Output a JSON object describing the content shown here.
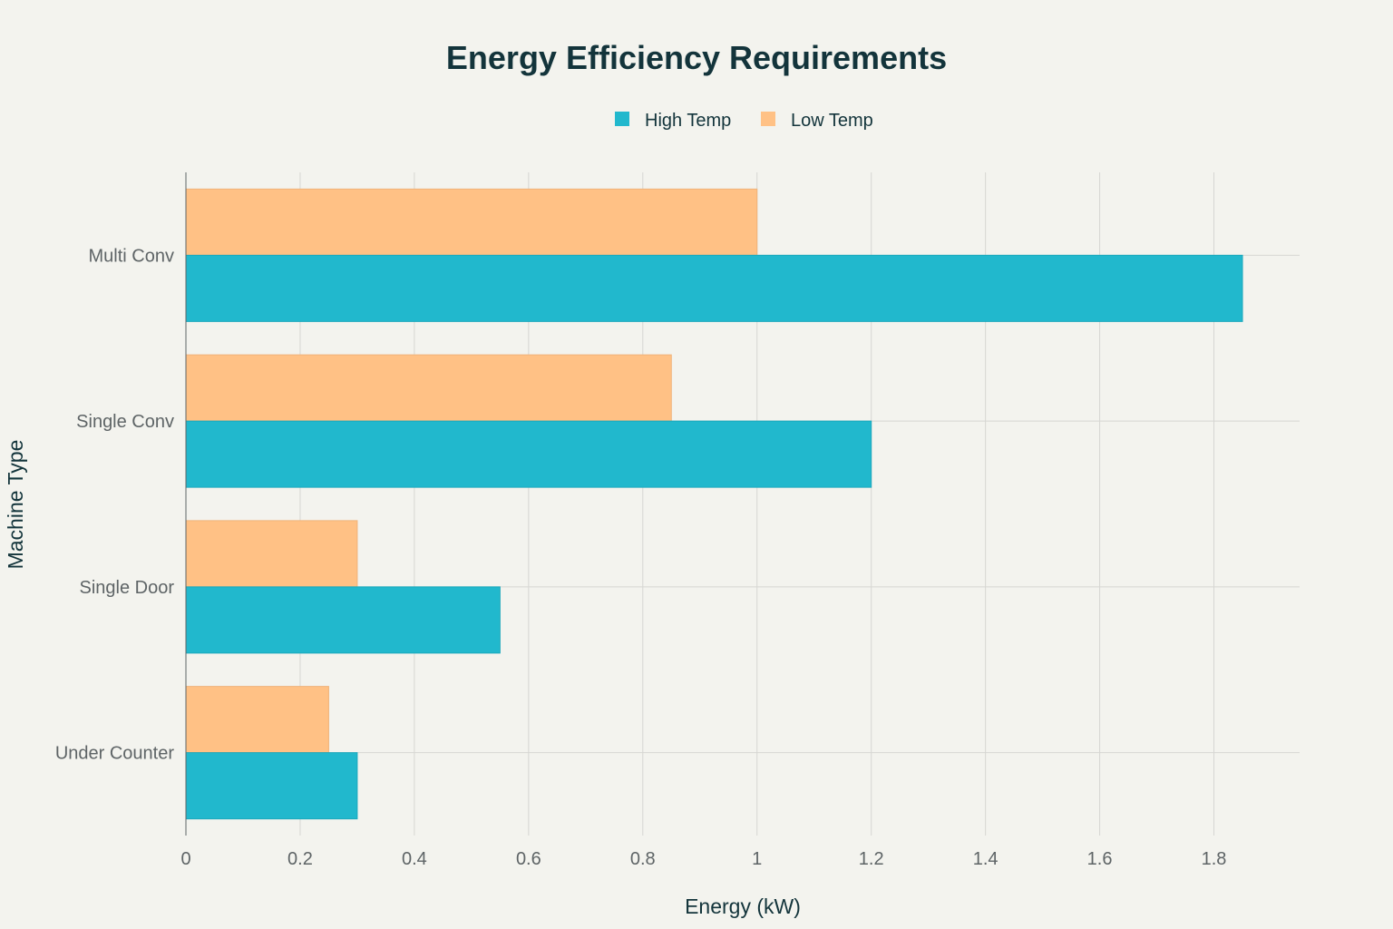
{
  "chart_data": {
    "type": "bar",
    "orientation": "horizontal",
    "title": "Energy Efficiency Requirements",
    "xlabel": "Energy (kW)",
    "ylabel": "Machine Type",
    "categories": [
      "Multi Conv",
      "Single Conv",
      "Single Door",
      "Under Counter"
    ],
    "series": [
      {
        "name": "High Temp",
        "color": "#21b8cd",
        "values": [
          1.85,
          1.2,
          0.55,
          0.3
        ]
      },
      {
        "name": "Low Temp",
        "color": "#ffc185",
        "values": [
          1.0,
          0.85,
          0.3,
          0.25
        ]
      }
    ],
    "xlim": [
      0,
      1.95
    ],
    "xticks": [
      0,
      0.2,
      0.4,
      0.6,
      0.8,
      1,
      1.2,
      1.4,
      1.6,
      1.8
    ],
    "xtick_labels": [
      "0",
      "0.2",
      "0.4",
      "0.6",
      "0.8",
      "1",
      "1.2",
      "1.4",
      "1.6",
      "1.8"
    ],
    "grid": true,
    "legend_position": "top-center"
  }
}
